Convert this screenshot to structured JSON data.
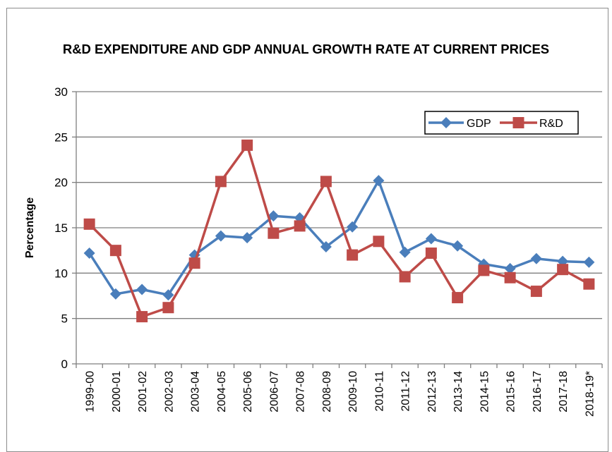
{
  "chart_data": {
    "type": "line",
    "title": "R&D EXPENDITURE AND GDP ANNUAL GROWTH RATE AT CURRENT PRICES",
    "xlabel": "",
    "ylabel": "Percentage",
    "ylim": [
      0,
      30
    ],
    "yticks": [
      "0",
      "5",
      "10",
      "15",
      "20",
      "25",
      "30"
    ],
    "grid": true,
    "legend_position": "top-right",
    "categories": [
      "1999-00",
      "2000-01",
      "2001-02",
      "2002-03",
      "2003-04",
      "2004-05",
      "2005-06",
      "2006-07",
      "2007-08",
      "2008-09",
      "2009-10",
      "2010-11",
      "2011-12",
      "2012-13",
      "2013-14",
      "2014-15",
      "2015-16",
      "2016-17",
      "2017-18",
      "2018-19*"
    ],
    "series": [
      {
        "name": "GDP",
        "color": "#4a7ebb",
        "marker": "diamond",
        "values": [
          12.2,
          7.7,
          8.2,
          7.6,
          12.0,
          14.1,
          13.9,
          16.3,
          16.1,
          12.9,
          15.1,
          20.2,
          12.3,
          13.8,
          13.0,
          11.0,
          10.5,
          11.6,
          11.3,
          11.2
        ]
      },
      {
        "name": "R&D",
        "color": "#be4b48",
        "marker": "square",
        "values": [
          15.4,
          12.5,
          5.2,
          6.2,
          11.1,
          20.1,
          24.1,
          14.4,
          15.2,
          20.1,
          12.0,
          13.5,
          9.6,
          12.2,
          7.3,
          10.3,
          9.5,
          8.0,
          10.4,
          8.8
        ]
      }
    ]
  }
}
